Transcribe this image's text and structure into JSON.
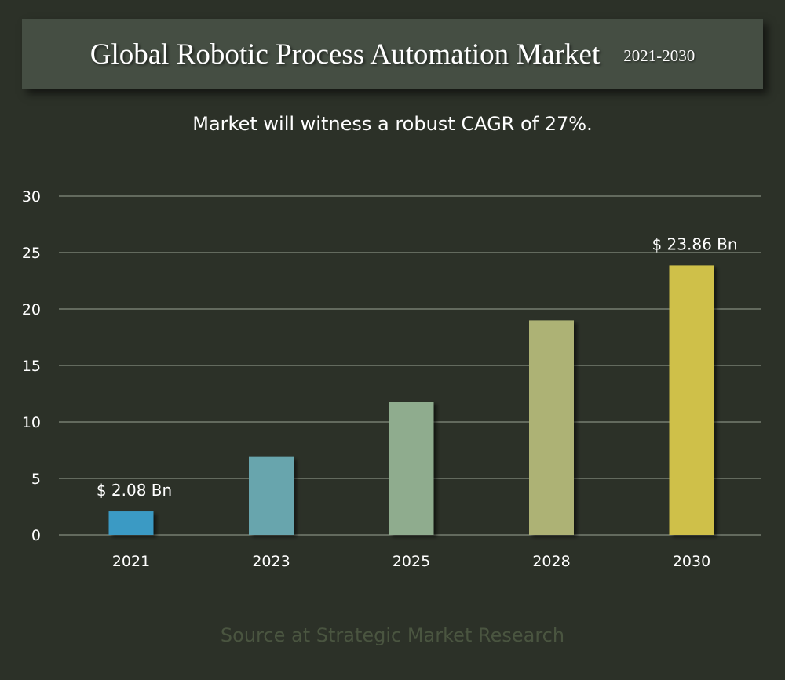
{
  "header": {
    "title": "Global Robotic Process Automation Market",
    "years": "2021-2030"
  },
  "subtitle": "Market will witness a robust CAGR of 27%.",
  "source": "Source at Strategic Market Research",
  "chart_data": {
    "type": "bar",
    "categories": [
      "2021",
      "2023",
      "2025",
      "2028",
      "2030"
    ],
    "values": [
      2.08,
      6.9,
      11.8,
      19.0,
      23.86
    ],
    "ylim": [
      0,
      30
    ],
    "yticks": [
      0,
      5,
      10,
      15,
      20,
      25,
      30
    ],
    "grid": true,
    "data_labels": [
      "$ 2.08 Bn",
      "",
      "",
      "",
      "$ 23.86 Bn"
    ],
    "bar_colors": [
      "#3a9ac4",
      "#67a5ad",
      "#8fac8e",
      "#adb274",
      "#cfc04a"
    ],
    "colors": {
      "background": "#2c3128",
      "banner": "#454e43",
      "gridline": "#9aa393",
      "axis_text": "#ffffff",
      "source_text": "#4a5540"
    }
  }
}
